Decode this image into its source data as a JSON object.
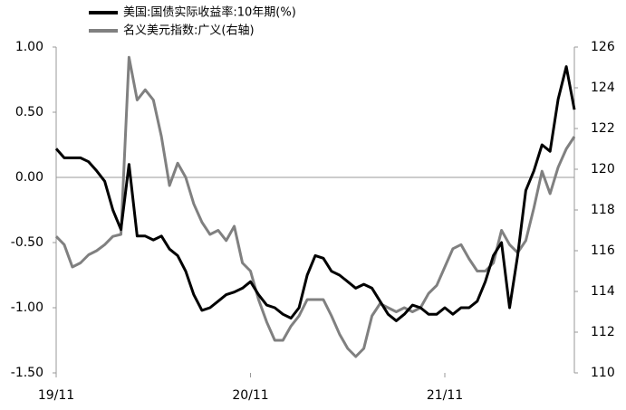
{
  "chart_data": {
    "type": "line",
    "categories": [
      "19/11",
      null,
      null,
      null,
      null,
      null,
      null,
      null,
      null,
      null,
      null,
      null,
      null,
      null,
      null,
      null,
      null,
      null,
      null,
      null,
      null,
      null,
      null,
      null,
      "20/11",
      null,
      null,
      null,
      null,
      null,
      null,
      null,
      null,
      null,
      null,
      null,
      null,
      null,
      null,
      null,
      null,
      null,
      null,
      null,
      null,
      null,
      null,
      null,
      "21/11",
      null,
      null,
      null,
      null,
      null,
      null,
      null,
      null,
      null,
      null,
      null,
      null,
      null,
      null,
      null,
      null
    ],
    "series": [
      {
        "name": "美国:国债实际收益率:10年期(%)",
        "color": "#000000",
        "values": [
          0.22,
          0.15,
          0.15,
          0.15,
          0.12,
          0.05,
          -0.03,
          -0.25,
          -0.4,
          0.1,
          -0.45,
          -0.45,
          -0.48,
          -0.45,
          -0.55,
          -0.6,
          -0.72,
          -0.9,
          -1.02,
          -1.0,
          -0.95,
          -0.9,
          -0.88,
          -0.85,
          -0.8,
          -0.9,
          -0.98,
          -1.0,
          -1.05,
          -1.08,
          -1.0,
          -0.75,
          -0.6,
          -0.62,
          -0.72,
          -0.75,
          -0.8,
          -0.85,
          -0.82,
          -0.85,
          -0.95,
          -1.05,
          -1.1,
          -1.05,
          -0.98,
          -1.0,
          -1.05,
          -1.05,
          -1.0,
          -1.05,
          -1.0,
          -1.0,
          -0.95,
          -0.8,
          -0.6,
          -0.5,
          -1.0,
          -0.6,
          -0.1,
          0.05,
          0.25,
          0.2,
          0.6,
          0.85,
          0.52
        ]
      },
      {
        "name": "名义美元指数:广义(右轴)",
        "color": "#808080",
        "axis": "y2",
        "values": [
          116.7,
          116.3,
          115.2,
          115.4,
          115.8,
          116.0,
          116.3,
          116.7,
          116.8,
          125.5,
          123.4,
          123.9,
          123.4,
          121.6,
          119.2,
          120.3,
          119.6,
          118.3,
          117.4,
          116.8,
          117.0,
          116.5,
          117.2,
          115.4,
          115.0,
          113.6,
          112.5,
          111.6,
          111.6,
          112.3,
          112.8,
          113.6,
          113.6,
          113.6,
          112.8,
          111.9,
          111.2,
          110.8,
          111.2,
          112.8,
          113.4,
          113.2,
          113.0,
          113.2,
          113.0,
          113.2,
          113.9,
          114.3,
          115.2,
          116.1,
          116.3,
          115.6,
          115.0,
          115.0,
          115.4,
          117.0,
          116.3,
          115.9,
          116.5,
          118.1,
          119.9,
          118.8,
          120.1,
          121.0,
          121.6
        ]
      }
    ],
    "ylim": [
      -1.5,
      1.0
    ],
    "yticks": [
      {
        "value": -1.5,
        "label": "-1.50"
      },
      {
        "value": -1.0,
        "label": "-1.00"
      },
      {
        "value": -0.5,
        "label": "-0.50"
      },
      {
        "value": 0,
        "label": "0.00"
      },
      {
        "value": 0.5,
        "label": "0.50"
      },
      {
        "value": 1.0,
        "label": "1.00"
      }
    ],
    "y2lim": [
      110,
      126
    ],
    "y2ticks": [
      110,
      112,
      114,
      116,
      118,
      120,
      122,
      124,
      126
    ],
    "legend": "top-left"
  }
}
